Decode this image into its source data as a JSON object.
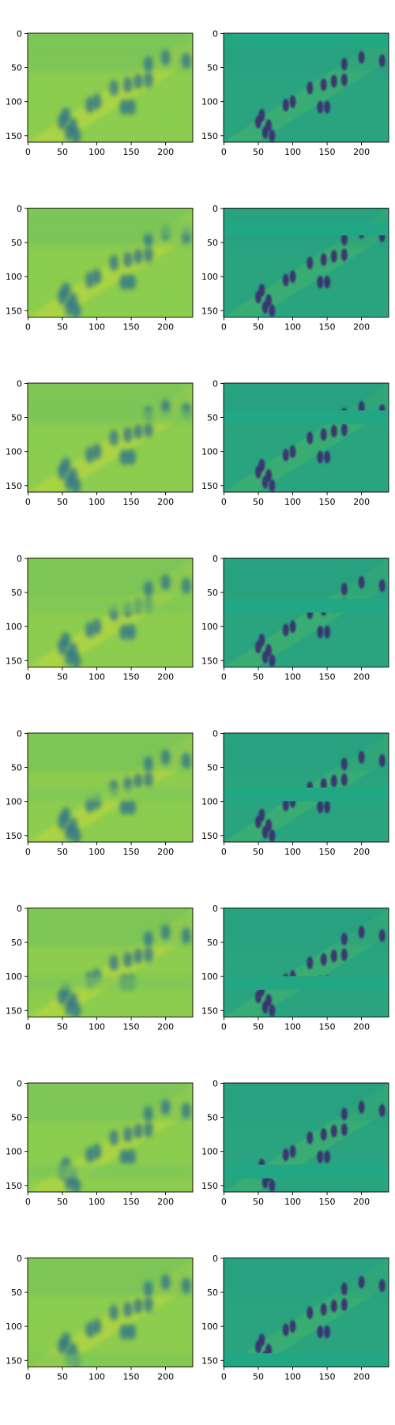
{
  "chart_data": [
    {
      "type": "image",
      "xlim": [
        -0.5,
        239.5
      ],
      "ylim": [
        159.5,
        -0.5
      ],
      "xticks": [
        0,
        50,
        100,
        150,
        200
      ],
      "yticks": [
        0,
        50,
        100,
        150
      ]
    },
    {
      "type": "image",
      "xlim": [
        -0.5,
        239.5
      ],
      "ylim": [
        159.5,
        -0.5
      ],
      "xticks": [
        0,
        50,
        100,
        150,
        200
      ],
      "yticks": [
        0,
        50,
        100,
        150
      ]
    },
    {
      "type": "image",
      "xlim": [
        -0.5,
        239.5
      ],
      "ylim": [
        159.5,
        -0.5
      ],
      "xticks": [
        0,
        50,
        100,
        150,
        200
      ],
      "yticks": [
        0,
        50,
        100,
        150
      ]
    },
    {
      "type": "image",
      "xlim": [
        -0.5,
        239.5
      ],
      "ylim": [
        159.5,
        -0.5
      ],
      "xticks": [
        0,
        50,
        100,
        150,
        200
      ],
      "yticks": [
        0,
        50,
        100,
        150
      ]
    },
    {
      "type": "image",
      "xlim": [
        -0.5,
        239.5
      ],
      "ylim": [
        159.5,
        -0.5
      ],
      "xticks": [
        0,
        50,
        100,
        150,
        200
      ],
      "yticks": [
        0,
        50,
        100,
        150
      ]
    },
    {
      "type": "image",
      "xlim": [
        -0.5,
        239.5
      ],
      "ylim": [
        159.5,
        -0.5
      ],
      "xticks": [
        0,
        50,
        100,
        150,
        200
      ],
      "yticks": [
        0,
        50,
        100,
        150
      ]
    },
    {
      "type": "image",
      "xlim": [
        -0.5,
        239.5
      ],
      "ylim": [
        159.5,
        -0.5
      ],
      "xticks": [
        0,
        50,
        100,
        150,
        200
      ],
      "yticks": [
        0,
        50,
        100,
        150
      ]
    },
    {
      "type": "image",
      "xlim": [
        -0.5,
        239.5
      ],
      "ylim": [
        159.5,
        -0.5
      ],
      "xticks": [
        0,
        50,
        100,
        150,
        200
      ],
      "yticks": [
        0,
        50,
        100,
        150
      ]
    },
    {
      "type": "image",
      "xlim": [
        -0.5,
        239.5
      ],
      "ylim": [
        159.5,
        -0.5
      ],
      "xticks": [
        0,
        50,
        100,
        150,
        200
      ],
      "yticks": [
        0,
        50,
        100,
        150
      ]
    },
    {
      "type": "image",
      "xlim": [
        -0.5,
        239.5
      ],
      "ylim": [
        159.5,
        -0.5
      ],
      "xticks": [
        0,
        50,
        100,
        150,
        200
      ],
      "yticks": [
        0,
        50,
        100,
        150
      ]
    },
    {
      "type": "image",
      "xlim": [
        -0.5,
        239.5
      ],
      "ylim": [
        159.5,
        -0.5
      ],
      "xticks": [
        0,
        50,
        100,
        150,
        200
      ],
      "yticks": [
        0,
        50,
        100,
        150
      ]
    },
    {
      "type": "image",
      "xlim": [
        -0.5,
        239.5
      ],
      "ylim": [
        159.5,
        -0.5
      ],
      "xticks": [
        0,
        50,
        100,
        150,
        200
      ],
      "yticks": [
        0,
        50,
        100,
        150
      ]
    },
    {
      "type": "image",
      "xlim": [
        -0.5,
        239.5
      ],
      "ylim": [
        159.5,
        -0.5
      ],
      "xticks": [
        0,
        50,
        100,
        150,
        200
      ],
      "yticks": [
        0,
        50,
        100,
        150
      ]
    },
    {
      "type": "image",
      "xlim": [
        -0.5,
        239.5
      ],
      "ylim": [
        159.5,
        -0.5
      ],
      "xticks": [
        0,
        50,
        100,
        150,
        200
      ],
      "yticks": [
        0,
        50,
        100,
        150
      ]
    },
    {
      "type": "image",
      "xlim": [
        -0.5,
        239.5
      ],
      "ylim": [
        159.5,
        -0.5
      ],
      "xticks": [
        0,
        50,
        100,
        150,
        200
      ],
      "yticks": [
        0,
        50,
        100,
        150
      ]
    },
    {
      "type": "image",
      "xlim": [
        -0.5,
        239.5
      ],
      "ylim": [
        159.5,
        -0.5
      ],
      "xticks": [
        0,
        50,
        100,
        150,
        200
      ],
      "yticks": [
        0,
        50,
        100,
        150
      ]
    }
  ]
}
